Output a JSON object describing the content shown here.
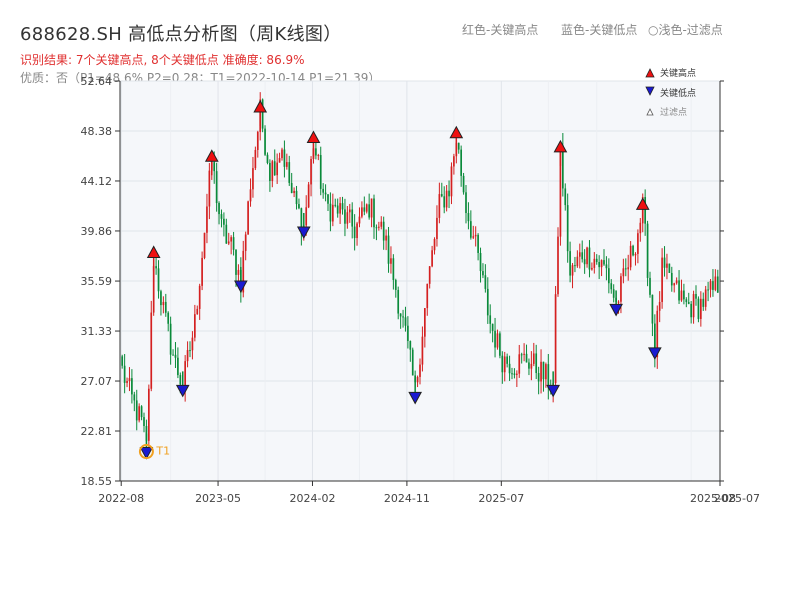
{
  "header": {
    "title": "688628.SH 高低点分析图（周K线图）",
    "result_line": "识别结果: 7个关键高点, 8个关键低点  准确度: 86.9%",
    "quality_line": "优质：否（P1=48.6%  P2=0.28；T1=2022-10-14 P1=21.39）"
  },
  "top_legend": {
    "red_label": "红色-关键高点",
    "blue_label": "蓝色-关键低点",
    "light_label": "○浅色-过滤点"
  },
  "colors": {
    "up": "#d42020",
    "down": "#0a8a3a",
    "high_marker": "#ee1111",
    "low_marker": "#1a1ad0",
    "t1_marker": "#f0a020",
    "plot_bg": "#f5f7fa",
    "grid": "#e0e4ea"
  },
  "chart_data": {
    "type": "candlestick",
    "y_ticks": [
      "52.64",
      "48.38",
      "44.12",
      "39.86",
      "35.59",
      "31.33",
      "27.07",
      "22.81",
      "18.55"
    ],
    "ylim": [
      18.55,
      52.64
    ],
    "x_ticks": [
      "2022-08",
      "2023-05",
      "2024-02",
      "2024-11",
      "2025-07",
      "2025-08"
    ],
    "grid": true,
    "legend_position": "top-right",
    "legend": {
      "high_label": "关键高点",
      "low_label": "关键低点",
      "filtered_label": "过滤点"
    },
    "key_highs": [
      {
        "week": 13,
        "price": 37.6
      },
      {
        "week": 37,
        "price": 45.8
      },
      {
        "week": 57,
        "price": 50.0
      },
      {
        "week": 79,
        "price": 47.4
      },
      {
        "week": 138,
        "price": 47.8
      },
      {
        "week": 181,
        "price": 46.6
      },
      {
        "week": 215,
        "price": 41.7
      }
    ],
    "key_lows": [
      {
        "week": 10,
        "price": 21.4
      },
      {
        "week": 25,
        "price": 26.7
      },
      {
        "week": 49,
        "price": 35.6
      },
      {
        "week": 75,
        "price": 40.2
      },
      {
        "week": 121,
        "price": 26.1
      },
      {
        "week": 178,
        "price": 26.7
      },
      {
        "week": 204,
        "price": 33.6
      },
      {
        "week": 220,
        "price": 29.9
      }
    ],
    "t1_marker": {
      "label": "T1",
      "week": 10,
      "price": 21.4
    },
    "weeks_total": 247,
    "price_path": [
      [
        0,
        28.0
      ],
      [
        4,
        25.5
      ],
      [
        8,
        23.5
      ],
      [
        10,
        21.4
      ],
      [
        13,
        37.6
      ],
      [
        18,
        32.0
      ],
      [
        22,
        28.5
      ],
      [
        25,
        26.7
      ],
      [
        30,
        32.0
      ],
      [
        34,
        40.0
      ],
      [
        37,
        45.8
      ],
      [
        41,
        40.0
      ],
      [
        45,
        38.5
      ],
      [
        49,
        35.6
      ],
      [
        53,
        44.0
      ],
      [
        57,
        50.0
      ],
      [
        61,
        45.0
      ],
      [
        66,
        47.0
      ],
      [
        70,
        43.0
      ],
      [
        75,
        40.2
      ],
      [
        79,
        47.4
      ],
      [
        84,
        42.0
      ],
      [
        90,
        41.5
      ],
      [
        96,
        40.0
      ],
      [
        102,
        42.0
      ],
      [
        108,
        39.5
      ],
      [
        113,
        35.0
      ],
      [
        117,
        31.0
      ],
      [
        121,
        26.1
      ],
      [
        126,
        35.0
      ],
      [
        131,
        42.0
      ],
      [
        135,
        43.5
      ],
      [
        138,
        47.8
      ],
      [
        142,
        42.0
      ],
      [
        147,
        37.5
      ],
      [
        152,
        32.0
      ],
      [
        157,
        29.0
      ],
      [
        162,
        28.5
      ],
      [
        167,
        29.0
      ],
      [
        172,
        28.0
      ],
      [
        178,
        26.7
      ],
      [
        181,
        46.6
      ],
      [
        185,
        36.0
      ],
      [
        190,
        38.0
      ],
      [
        195,
        37.5
      ],
      [
        200,
        36.5
      ],
      [
        204,
        33.6
      ],
      [
        209,
        37.0
      ],
      [
        212,
        39.0
      ],
      [
        215,
        41.7
      ],
      [
        220,
        29.9
      ],
      [
        223,
        36.5
      ],
      [
        228,
        35.0
      ],
      [
        233,
        33.5
      ],
      [
        238,
        33.5
      ],
      [
        243,
        34.5
      ],
      [
        247,
        35.6
      ]
    ]
  }
}
